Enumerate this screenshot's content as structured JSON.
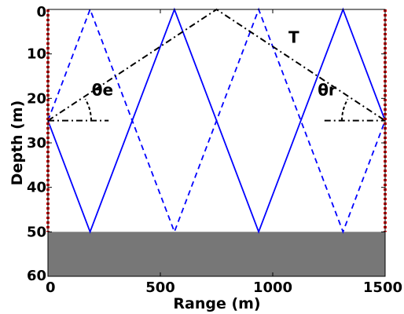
{
  "chart_data": {
    "type": "line",
    "xlabel": "Range (m)",
    "ylabel": "Depth (m)",
    "xlim": [
      0,
      1500
    ],
    "ylim": [
      60,
      0
    ],
    "x_ticks": [
      "0",
      "500",
      "1000",
      "1500"
    ],
    "y_ticks": [
      "0",
      "10",
      "20",
      "30",
      "40",
      "50",
      "60"
    ],
    "seabed": {
      "depth_from": 50,
      "depth_to": 60,
      "color": "#777777"
    },
    "arrays": [
      {
        "range": 0,
        "depth_from": 0,
        "depth_to": 50,
        "color": "#dd0000"
      },
      {
        "range": 1500,
        "depth_from": 0,
        "depth_to": 50,
        "color": "#dd0000"
      }
    ],
    "series": [
      {
        "style": "solid",
        "color": "#0000ff",
        "x": [
          0,
          187.5,
          562.5,
          937.5,
          1312.5,
          1500
        ],
        "y": [
          25,
          50,
          0,
          50,
          0,
          25
        ]
      },
      {
        "style": "dashed",
        "color": "#0000ff",
        "x": [
          0,
          187.5,
          562.5,
          937.5,
          1312.5,
          1500
        ],
        "y": [
          25,
          0,
          50,
          0,
          50,
          25
        ]
      },
      {
        "style": "dashdot",
        "color": "#000000",
        "x": [
          0,
          750,
          1500
        ],
        "y": [
          25,
          0,
          25
        ]
      }
    ],
    "reference_lines": [
      {
        "x": [
          0,
          270
        ],
        "y": [
          25,
          25
        ]
      },
      {
        "x": [
          1230,
          1500
        ],
        "y": [
          25,
          25
        ]
      }
    ],
    "annotations": [
      {
        "text": "T",
        "x": 1070,
        "y": 7.5
      },
      {
        "text": "θe",
        "x": 195,
        "y": 19.3
      },
      {
        "text": "θr",
        "x": 1200,
        "y": 19.3
      }
    ]
  }
}
